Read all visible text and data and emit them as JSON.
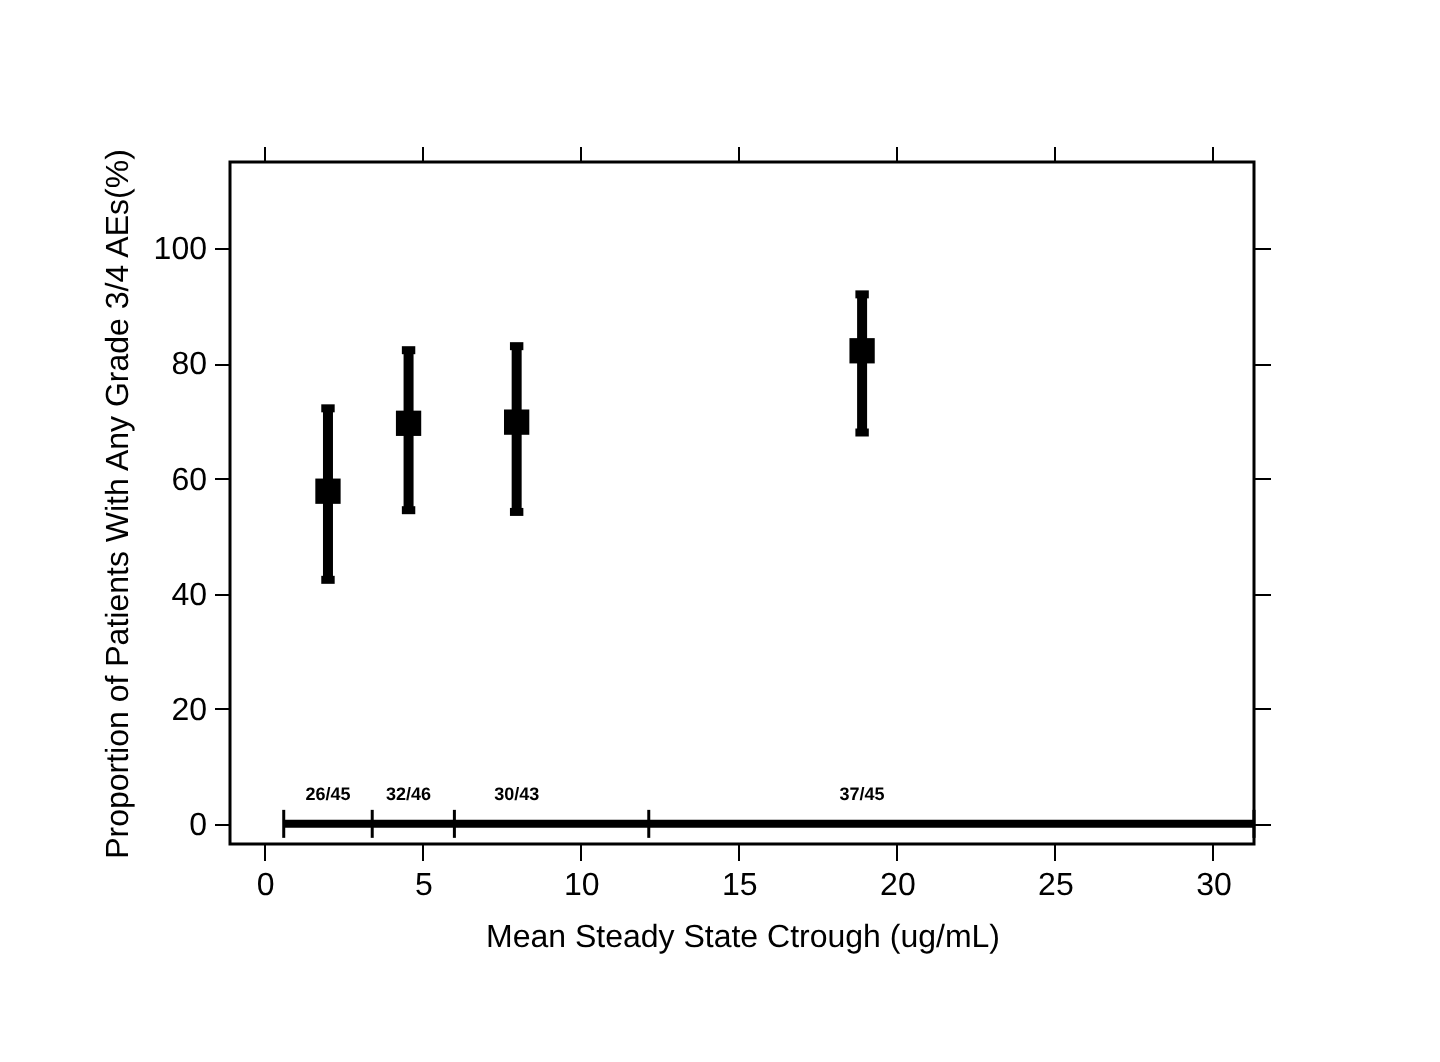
{
  "chart_data": {
    "type": "scatter",
    "xlabel": "Mean Steady State Ctrough (ug/mL)",
    "ylabel": "Proportion of Patients With Any Grade 3/4 AEs(%)",
    "xlim": [
      -1.1,
      31.3
    ],
    "ylim": [
      -3.5,
      115
    ],
    "xticks": [
      0,
      5,
      10,
      15,
      20,
      25,
      30
    ],
    "yticks": [
      0,
      20,
      40,
      60,
      80,
      100
    ],
    "grid": false,
    "series": [
      {
        "color": "#000000",
        "marker": "square",
        "x": [
          2.0,
          4.55,
          7.97,
          18.9
        ],
        "values": [
          57.8,
          69.6,
          69.8,
          82.2
        ],
        "errors": [
          [
            42.4,
            72.2
          ],
          [
            54.5,
            82.3
          ],
          [
            54.2,
            83
          ],
          [
            68,
            92
          ]
        ]
      },
      {
        "type": "line",
        "color": "#000000",
        "line_style": "solid",
        "x": [
          0.6,
          3.4,
          6.0,
          12.15,
          31.3
        ],
        "values": [
          0,
          0,
          0,
          0,
          0
        ]
      }
    ],
    "annotations": [
      "26/45",
      "32/46",
      "30/43",
      "37/45"
    ]
  }
}
